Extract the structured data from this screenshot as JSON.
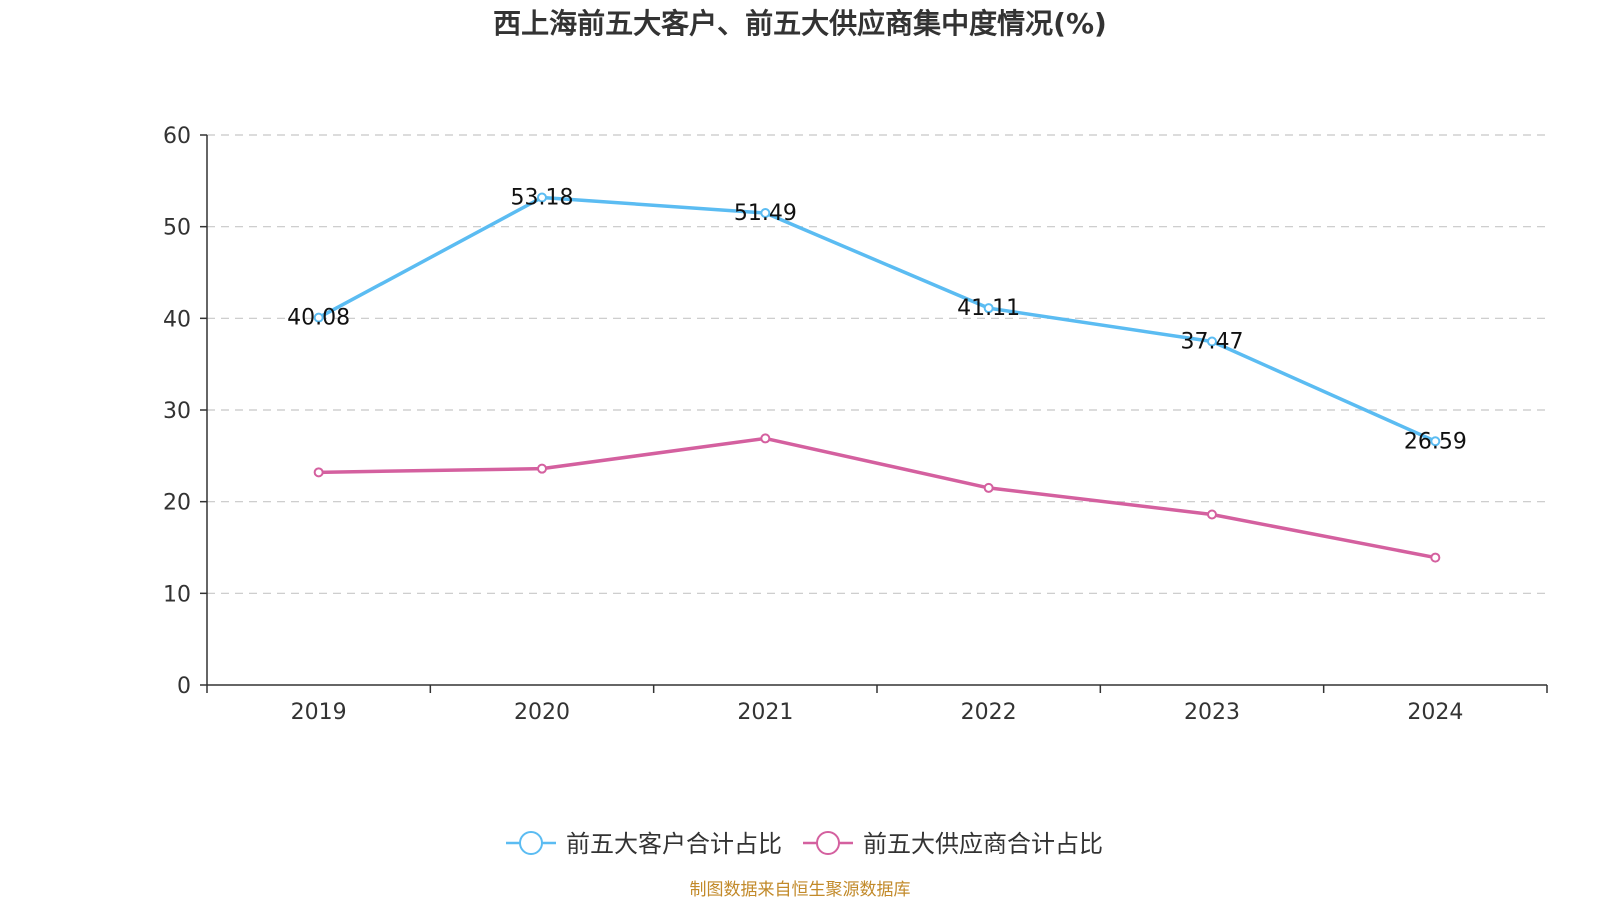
{
  "chart_data": {
    "type": "line",
    "title": "西上海前五大客户、前五大供应商集中度情况(%)",
    "xlabel": "",
    "ylabel": "",
    "categories": [
      "2019",
      "2020",
      "2021",
      "2022",
      "2023",
      "2024"
    ],
    "ylim": [
      0,
      60
    ],
    "yticks": [
      0,
      10,
      20,
      30,
      40,
      50,
      60
    ],
    "grid": true,
    "legend_position": "bottom",
    "series": [
      {
        "name": "前五大客户合计占比",
        "color": "#5bbcf2",
        "values": [
          40.08,
          53.18,
          51.49,
          41.11,
          37.47,
          26.59
        ],
        "labels": [
          "40.08",
          "53.18",
          "51.49",
          "41.11",
          "37.47",
          "26.59"
        ]
      },
      {
        "name": "前五大供应商合计占比",
        "color": "#d4609f",
        "values": [
          23.2,
          23.6,
          26.9,
          21.5,
          18.6,
          13.9
        ],
        "labels": null
      }
    ]
  },
  "source": "制图数据来自恒生聚源数据库"
}
